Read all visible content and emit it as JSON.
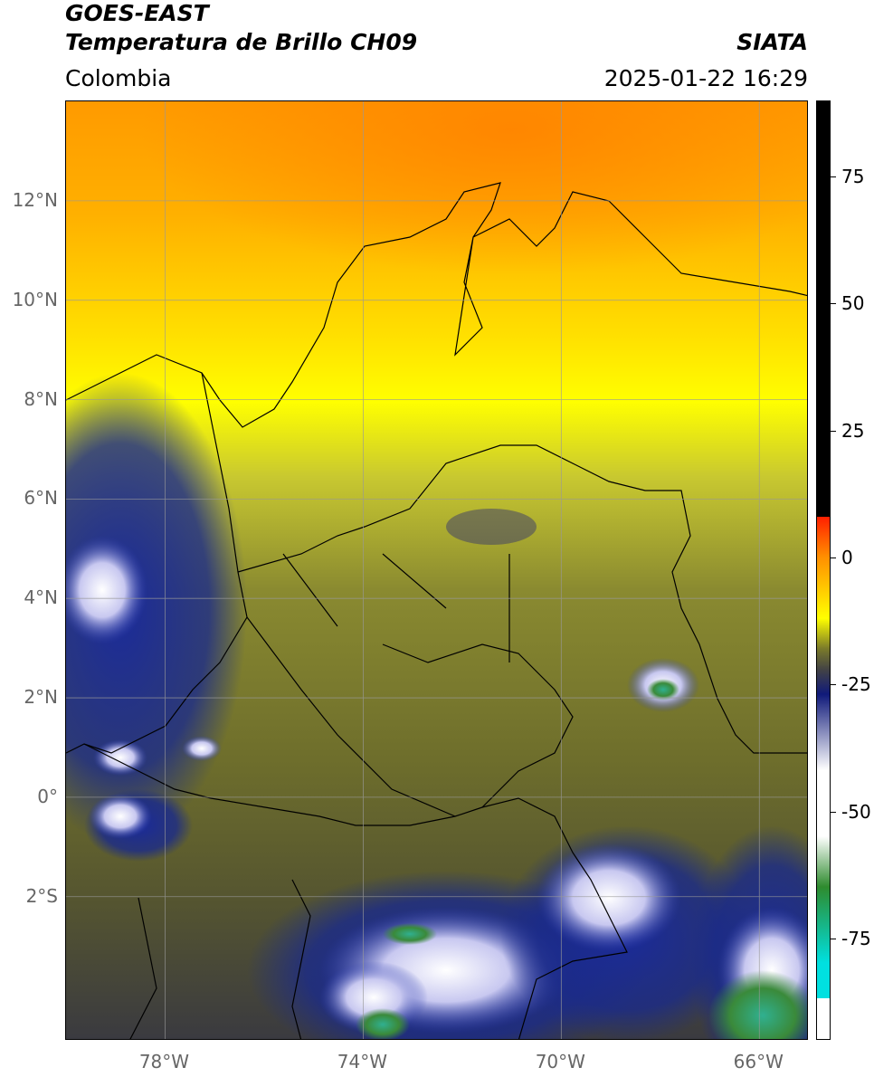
{
  "header": {
    "satellite": "GOES-EAST",
    "product": "Temperatura de Brillo CH09",
    "region": "Colombia",
    "agency": "SIATA",
    "datetime": "2025-01-22 16:29"
  },
  "map": {
    "lon_range": [
      -80,
      -65
    ],
    "lat_range": [
      -4.9,
      14
    ],
    "lat_ticks": [
      {
        "value": 12,
        "label": "12°N"
      },
      {
        "value": 10,
        "label": "10°N"
      },
      {
        "value": 8,
        "label": "8°N"
      },
      {
        "value": 6,
        "label": "6°N"
      },
      {
        "value": 4,
        "label": "4°N"
      },
      {
        "value": 2,
        "label": "2°N"
      },
      {
        "value": 0,
        "label": "0°"
      },
      {
        "value": -2,
        "label": "2°S"
      }
    ],
    "lon_ticks": [
      {
        "value": -78,
        "label": "78°W"
      },
      {
        "value": -74,
        "label": "74°W"
      },
      {
        "value": -70,
        "label": "70°W"
      },
      {
        "value": -66,
        "label": "66°W"
      }
    ],
    "grid": true
  },
  "colorbar": {
    "range": [
      -95,
      90
    ],
    "ticks": [
      {
        "value": 75,
        "label": "75"
      },
      {
        "value": 50,
        "label": "50"
      },
      {
        "value": 25,
        "label": "25"
      },
      {
        "value": 0,
        "label": "0"
      },
      {
        "value": -25,
        "label": "-25"
      },
      {
        "value": -50,
        "label": "-50"
      },
      {
        "value": -75,
        "label": "-75"
      }
    ],
    "colors": {
      "black": "#000000",
      "red": "#ff2000",
      "orange": "#ff9000",
      "yellow": "#ffff00",
      "olive": "#7a7a2a",
      "gray": "#444444",
      "navy": "#101a7a",
      "white": "#ffffff",
      "green": "#2e8b2e",
      "cyan": "#00e0e0"
    }
  }
}
